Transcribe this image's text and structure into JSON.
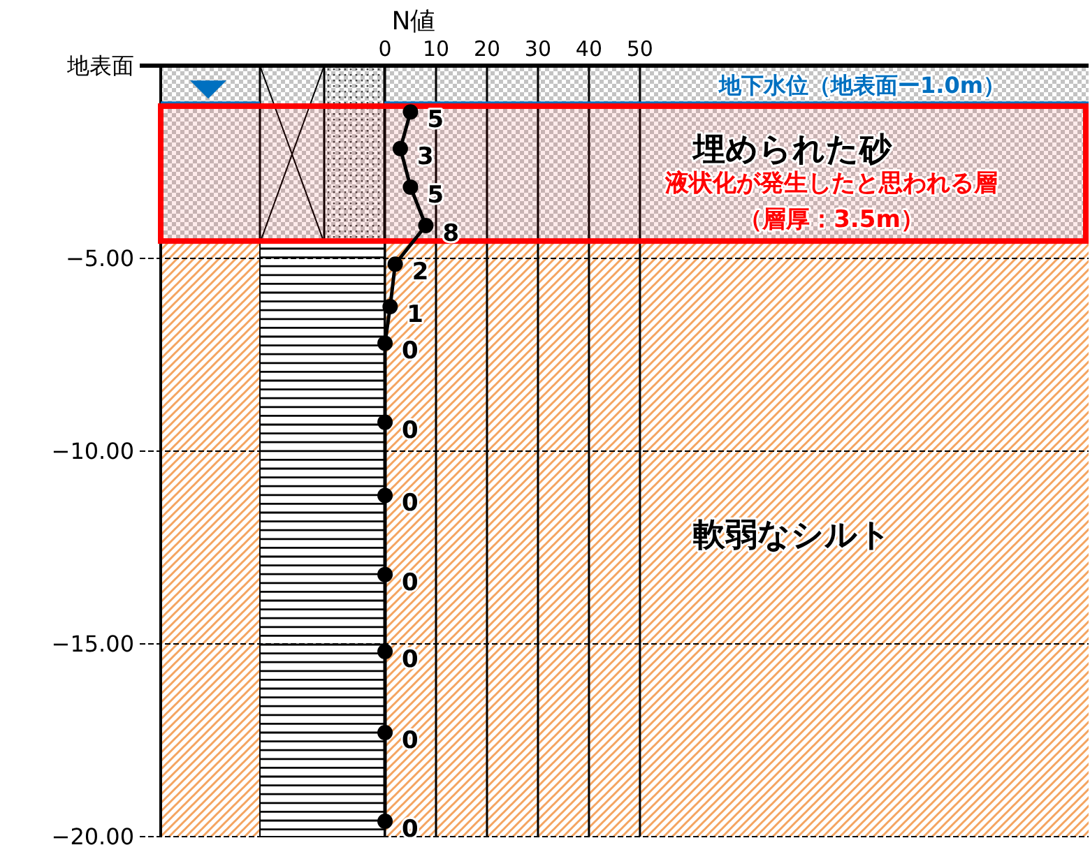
{
  "chart_data": {
    "type": "line",
    "xlabel": "N値",
    "xlim": [
      -44,
      138
    ],
    "xticks": [
      0,
      10,
      20,
      30,
      40,
      50
    ],
    "ylim": [
      -20,
      0
    ],
    "yticks": [
      {
        "value": 0,
        "label": "地表面"
      },
      {
        "value": -5,
        "label": "−5.00"
      },
      {
        "value": -10,
        "label": "−10.00"
      },
      {
        "value": -15,
        "label": "−15.00"
      },
      {
        "value": -20,
        "label": "−20.00"
      }
    ],
    "grid": true,
    "marker": "circle",
    "line_style": "solid",
    "series": [
      {
        "color": "#000000",
        "x": [
          5,
          3,
          5,
          8,
          2,
          1,
          0,
          0,
          0,
          0,
          0,
          0,
          0
        ],
        "values": [
          -1.2,
          -2.15,
          -3.15,
          -4.15,
          -5.15,
          -6.25,
          -7.2,
          -9.25,
          -11.15,
          -13.2,
          -15.2,
          -17.3,
          -19.6
        ]
      }
    ],
    "annotations": [
      {
        "text": "5",
        "x": 5,
        "y": -1.2
      },
      {
        "text": "3",
        "x": 3,
        "y": -2.15
      },
      {
        "text": "5",
        "x": 5,
        "y": -3.15
      },
      {
        "text": "8",
        "x": 8,
        "y": -4.15
      },
      {
        "text": "2",
        "x": 2,
        "y": -5.15
      },
      {
        "text": "1",
        "x": 1,
        "y": -6.25
      },
      {
        "text": "0",
        "x": 0,
        "y": -7.2
      },
      {
        "text": "0",
        "x": 0,
        "y": -9.25
      },
      {
        "text": "0",
        "x": 0,
        "y": -11.15
      },
      {
        "text": "0",
        "x": 0,
        "y": -13.2
      },
      {
        "text": "0",
        "x": 0,
        "y": -15.2
      },
      {
        "text": "0",
        "x": 0,
        "y": -17.3
      },
      {
        "text": "0",
        "x": 0,
        "y": -19.6
      }
    ],
    "bands": [
      {
        "axis": "y",
        "from": 0,
        "to": -4.6,
        "color": "#b4b4b4",
        "label": "埋められた砂"
      },
      {
        "axis": "y",
        "from": -4.6,
        "to": -20,
        "color": "#f4a460",
        "label": "軟弱なシルト"
      },
      {
        "axis": "y",
        "from": -1.05,
        "to": -4.55,
        "color": "#ff0000",
        "label": "液状化が発生したと思われる層（層厚：3.5m）"
      }
    ],
    "ref_lines": [
      {
        "axis": "y",
        "value": -1.0,
        "color": "#0070c0",
        "label": "地下水位（地表面ー1.0m）"
      }
    ]
  }
}
